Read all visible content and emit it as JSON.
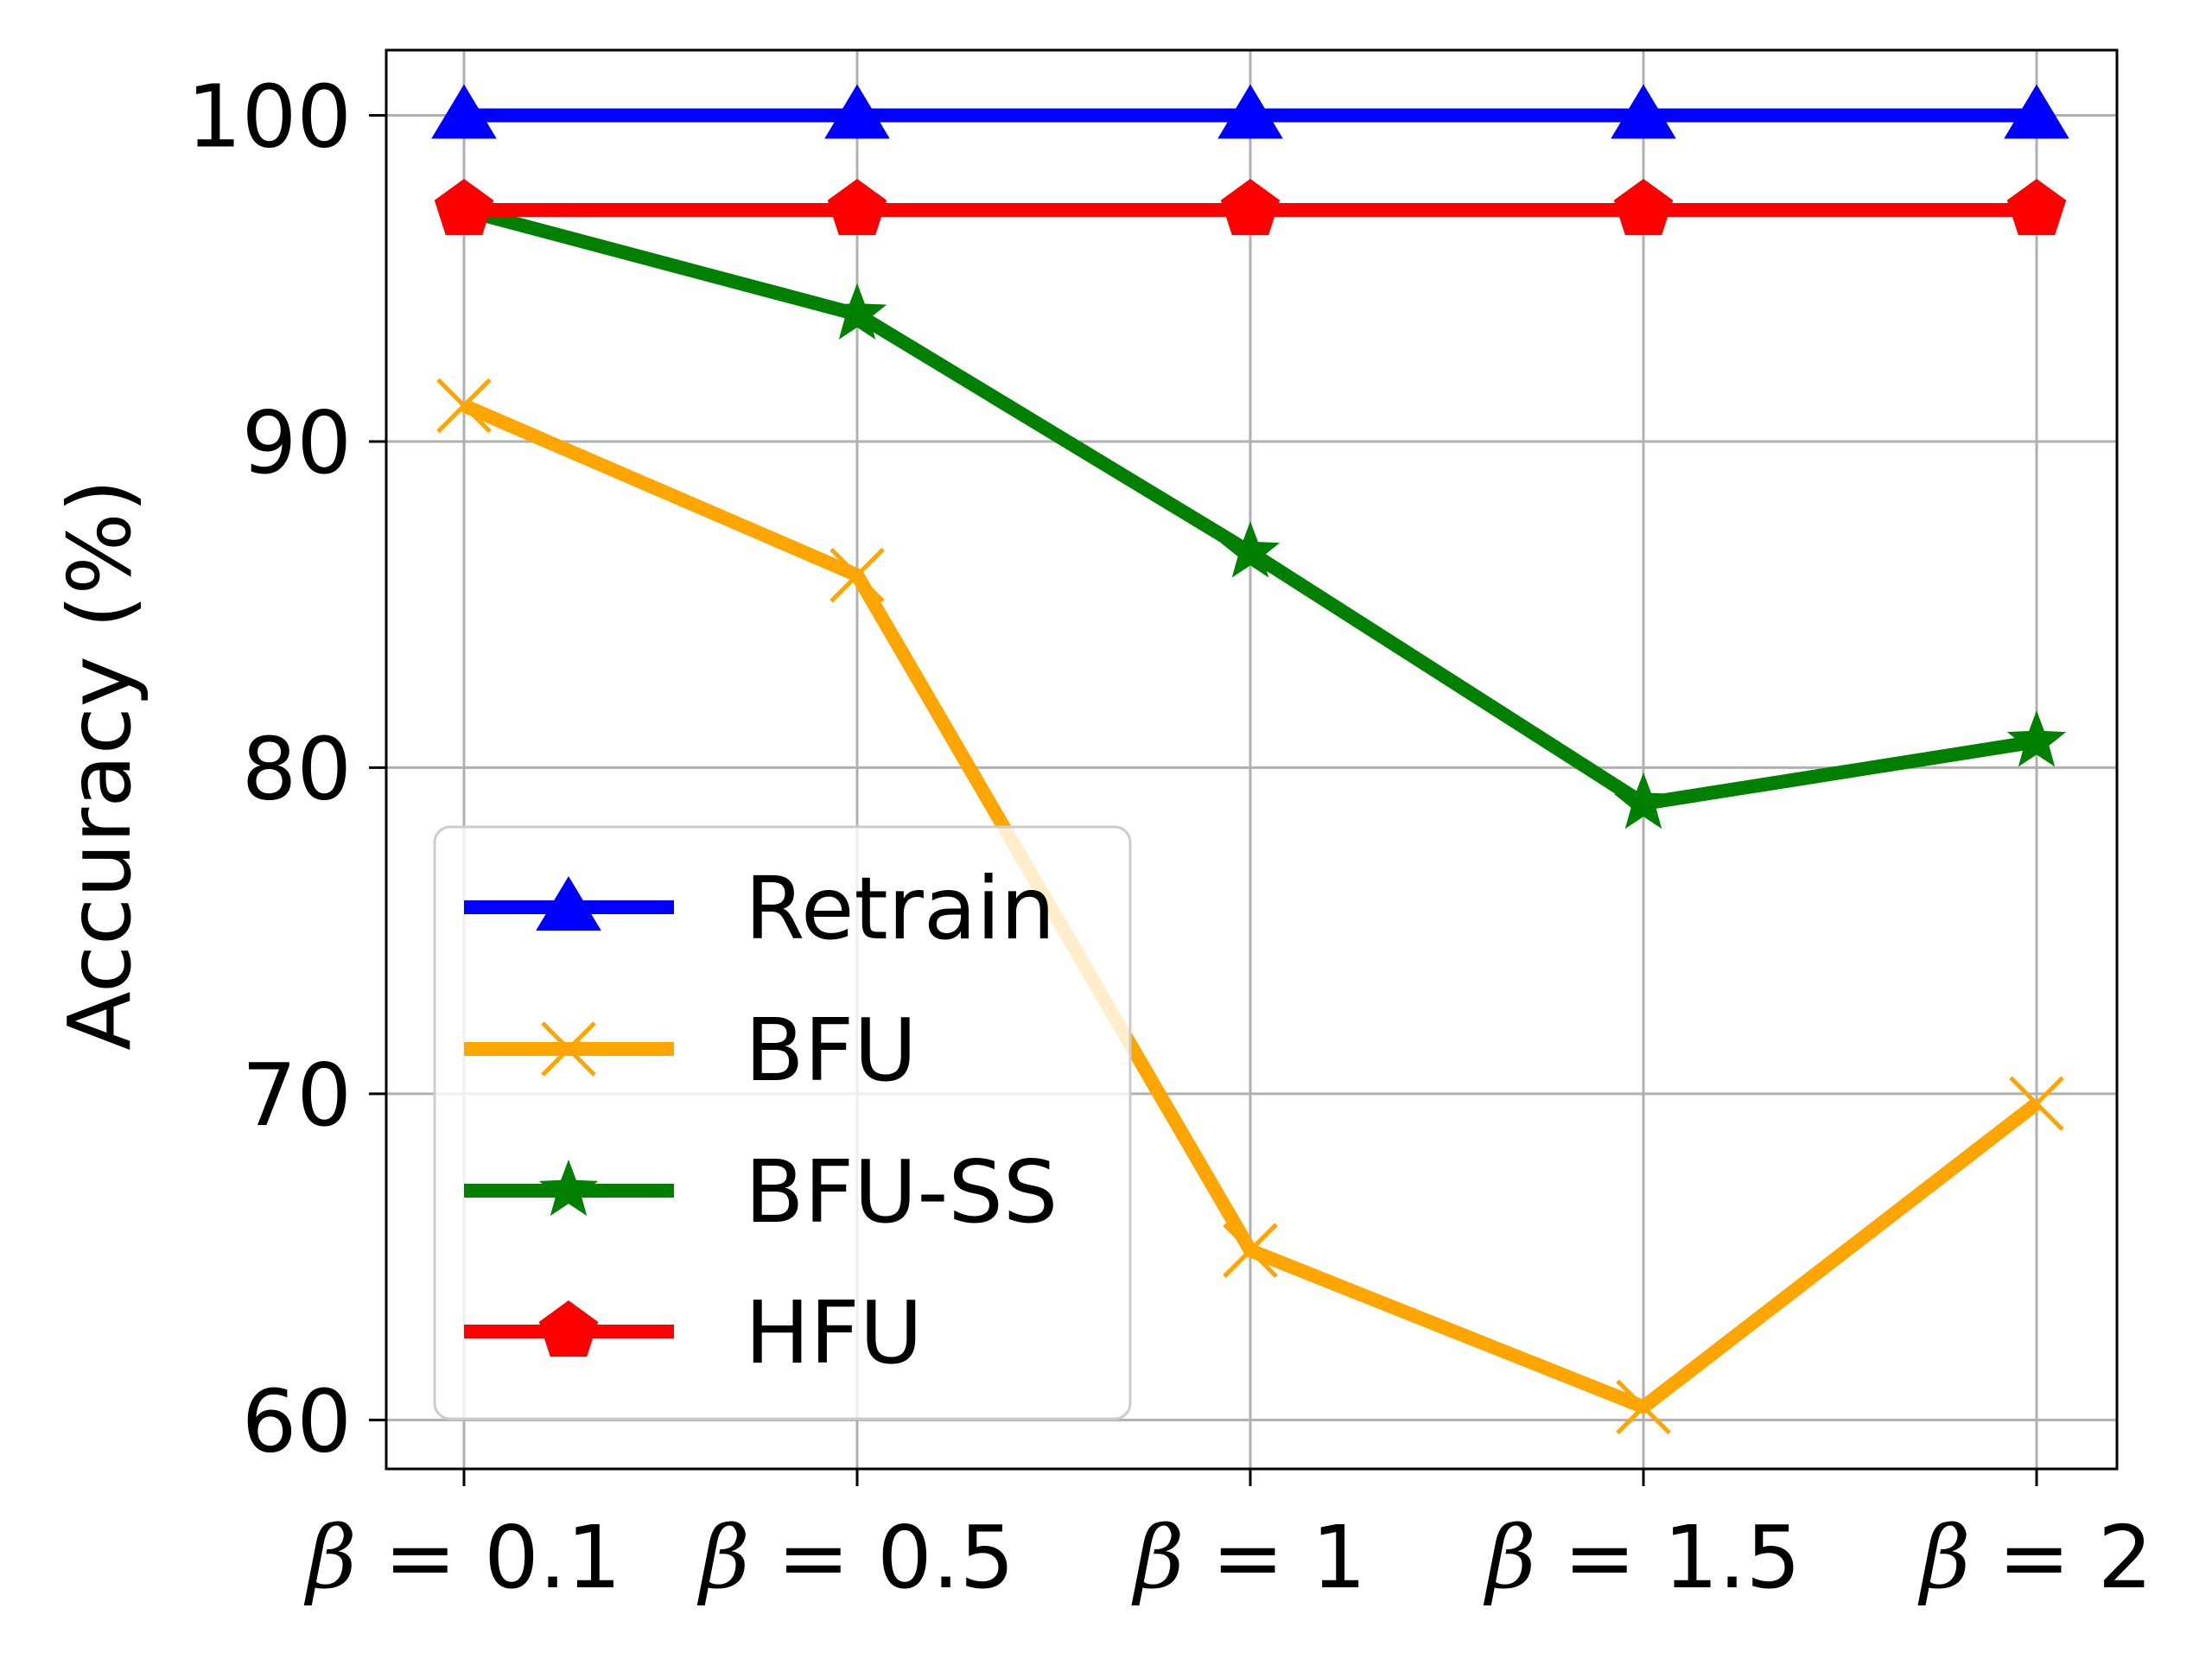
{
  "chart_data": {
    "type": "line",
    "title": "",
    "xlabel": "",
    "ylabel": "Accuracy (%)",
    "categories": [
      "β = 0.1",
      "β = 0.5",
      "β = 1",
      "β = 1.5",
      "β = 2"
    ],
    "ylim": [
      58.5,
      102
    ],
    "yticks": [
      "60",
      "70",
      "80",
      "90",
      "100"
    ],
    "grid": true,
    "legend_position": "lower-left",
    "series": [
      {
        "name": "Retrain",
        "color": "#0000ff",
        "marker": "triangle-up",
        "values": [
          100,
          100,
          100,
          100,
          100
        ]
      },
      {
        "name": "BFU",
        "color": "#ffa500",
        "marker": "x",
        "values": [
          91.1,
          85.9,
          65.2,
          60.4,
          69.7
        ]
      },
      {
        "name": "BFU-SS",
        "color": "#008000",
        "marker": "star",
        "values": [
          97.1,
          93.9,
          86.6,
          78.9,
          80.8
        ]
      },
      {
        "name": "HFU",
        "color": "#ff0000",
        "marker": "pentagon",
        "values": [
          97.1,
          97.1,
          97.1,
          97.1,
          97.1
        ]
      }
    ]
  }
}
